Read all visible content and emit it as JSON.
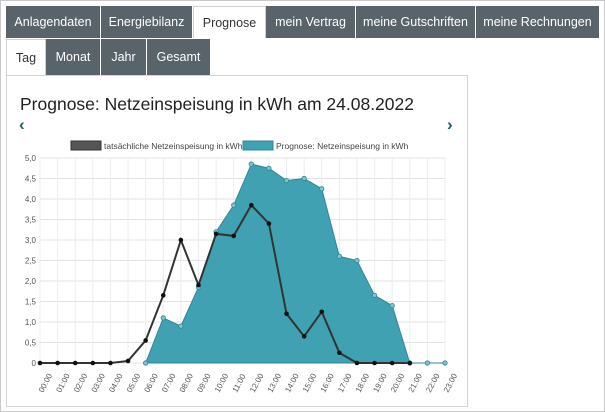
{
  "main_tabs": [
    {
      "label": "Anlagendaten",
      "active": false
    },
    {
      "label": "Energiebilanz",
      "active": false
    },
    {
      "label": "Prognose",
      "active": true
    },
    {
      "label": "mein Vertrag",
      "active": false
    },
    {
      "label": "meine Gutschriften",
      "active": false
    },
    {
      "label": "meine Rechnungen",
      "active": false
    }
  ],
  "sub_tabs": [
    {
      "label": "Tag",
      "active": true
    },
    {
      "label": "Monat",
      "active": false
    },
    {
      "label": "Jahr",
      "active": false
    },
    {
      "label": "Gesamt",
      "active": false
    }
  ],
  "panel": {
    "title": "Prognose: Netzeinspeisung in kWh am 24.08.2022",
    "prev_icon": "‹",
    "next_icon": "›"
  },
  "colors": {
    "tab_bg": "#58636a",
    "actual_line": "#333333",
    "forecast_fill": "#3fa1b1",
    "forecast_border": "#2f8796",
    "nav_arrow": "#1f5a6c"
  },
  "chart_data": {
    "type": "area",
    "x": [
      "00:00",
      "01:00",
      "02:00",
      "03:00",
      "04:00",
      "05:00",
      "06:00",
      "07:00",
      "08:00",
      "09:00",
      "10:00",
      "11:00",
      "12:00",
      "13:00",
      "14:00",
      "15:00",
      "16:00",
      "17:00",
      "18:00",
      "19:00",
      "20:00",
      "21:00",
      "22:00",
      "23:00"
    ],
    "ylim": [
      0,
      5.0
    ],
    "yticks": [
      "0",
      "0,5",
      "1,0",
      "1,5",
      "2,0",
      "2,5",
      "3,0",
      "3,5",
      "4,0",
      "4,5",
      "5,0"
    ],
    "grid": true,
    "legend_position": "top",
    "series": [
      {
        "name": "tatsächliche Netzeinspeisung in kWh",
        "kind": "line",
        "values": [
          0,
          0,
          0,
          0,
          0,
          0.05,
          0.55,
          1.65,
          3.0,
          1.9,
          3.15,
          3.1,
          3.85,
          3.4,
          1.2,
          0.65,
          1.25,
          0.25,
          0,
          0,
          0,
          0,
          null,
          null
        ]
      },
      {
        "name": "Prognose: Netzeinspeisung in kWh",
        "kind": "area",
        "values": [
          null,
          null,
          null,
          null,
          null,
          null,
          0,
          1.1,
          0.9,
          1.85,
          3.2,
          3.85,
          4.85,
          4.75,
          4.45,
          4.5,
          4.25,
          2.6,
          2.5,
          1.65,
          1.4,
          0,
          0,
          0
        ]
      }
    ]
  }
}
